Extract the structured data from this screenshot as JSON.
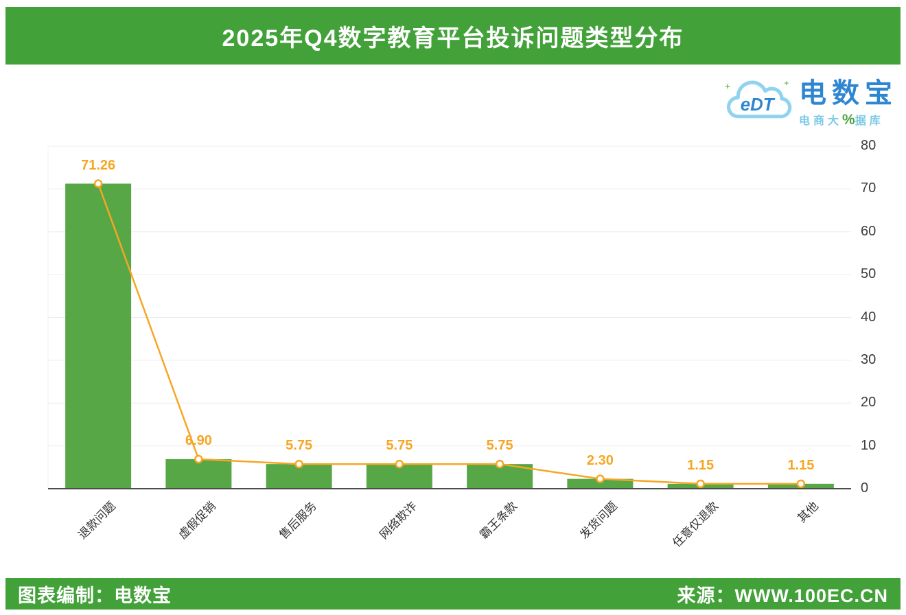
{
  "header": {
    "title": "2025年Q4数字教育平台投诉问题类型分布"
  },
  "logo": {
    "abbr": "eDT",
    "brand": "电数宝",
    "tagline_left": "电商大",
    "tagline_pct": "%",
    "tagline_right": "据库"
  },
  "footer": {
    "left": "图表编制：电数宝",
    "right": "来源：WWW.100EC.CN"
  },
  "colors": {
    "banner_green": "#42a139",
    "bar_green": "#57a747",
    "line_orange": "#f6a623",
    "label_orange": "#f6a623",
    "logo_blue": "#2e86d1",
    "logo_cyan": "#7cc9e8"
  },
  "chart_data": {
    "type": "bar",
    "overlays": [
      "line"
    ],
    "title": "2025年Q4数字教育平台投诉问题类型分布",
    "categories": [
      "退款问题",
      "虚假促销",
      "售后服务",
      "网络欺诈",
      "霸王条款",
      "发货问题",
      "任意仅退款",
      "其他"
    ],
    "values": [
      71.26,
      6.9,
      5.75,
      5.75,
      5.75,
      2.3,
      1.15,
      1.15
    ],
    "value_labels": [
      "71.26",
      "6.90",
      "5.75",
      "5.75",
      "5.75",
      "2.30",
      "1.15",
      "1.15"
    ],
    "unit": "%",
    "xlabel": "",
    "ylabel": "",
    "ylim": [
      0,
      80
    ],
    "yticks": [
      0,
      10,
      20,
      30,
      40,
      50,
      60,
      70,
      80
    ],
    "grid": true,
    "legend": "none",
    "axis_side": "right",
    "bar_color": "#57a747",
    "line_color": "#f6a623"
  }
}
